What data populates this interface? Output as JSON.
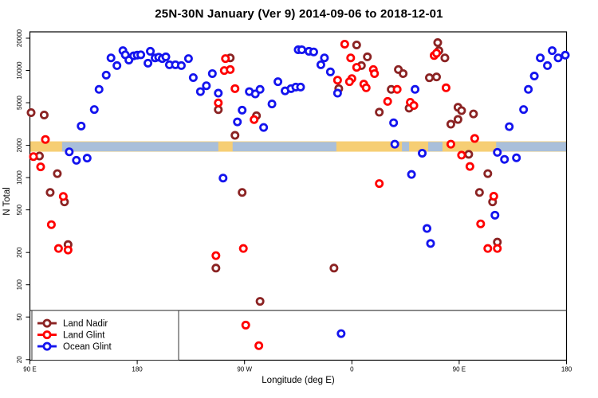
{
  "title": "25N-30N January (Ver 9)   2014-09-06 to 2018-12-01",
  "chart_data": {
    "type": "scatter",
    "title": "25N-30N January (Ver 9)   2014-09-06 to 2018-12-01",
    "xlabel": "Longitude (deg E)",
    "ylabel": "N Total",
    "x_range_deg": [
      90,
      540
    ],
    "y_log_range": [
      20,
      20000
    ],
    "x_ticks": [
      {
        "lon": 90,
        "label": "90 E"
      },
      {
        "lon": 180,
        "label": "180"
      },
      {
        "lon": 270,
        "label": "90 W"
      },
      {
        "lon": 360,
        "label": "0"
      },
      {
        "lon": 450,
        "label": "90 E"
      },
      {
        "lon": 540,
        "label": "180"
      }
    ],
    "y_ticks": [
      20000,
      10000,
      5000,
      2000,
      1000,
      500,
      200,
      100,
      50,
      20
    ],
    "grid": false,
    "hline_n": 57.5,
    "band": {
      "n_top": 2180,
      "n_bottom": 1745,
      "base_color": "#F6CE74",
      "overlay_color": "#A9BFDA",
      "overlay_segments_lon": [
        [
          117,
          248
        ],
        [
          260,
          347
        ],
        [
          402,
          408
        ],
        [
          424,
          436
        ],
        [
          481,
          540
        ]
      ]
    },
    "legend": {
      "position": "bottom-left"
    },
    "marker": {
      "radius": 4.1,
      "stroke_width": 2.8
    },
    "series": [
      {
        "name": "Land Nadir",
        "color": "#8B2323",
        "points": [
          [
            91,
            4040
          ],
          [
            102,
            3840
          ],
          [
            98,
            1590
          ],
          [
            113,
            1090
          ],
          [
            107,
            727
          ],
          [
            119,
            593
          ],
          [
            122,
            237
          ],
          [
            258,
            13100
          ],
          [
            248,
            4310
          ],
          [
            280,
            3780
          ],
          [
            262,
            2480
          ],
          [
            268,
            727
          ],
          [
            246,
            143
          ],
          [
            283,
            70
          ],
          [
            364,
            17300
          ],
          [
            373,
            13400
          ],
          [
            368,
            11100
          ],
          [
            399,
            10200
          ],
          [
            403,
            9350
          ],
          [
            349,
            6770
          ],
          [
            393,
            6660
          ],
          [
            383,
            4080
          ],
          [
            408,
            4450
          ],
          [
            425,
            8550
          ],
          [
            345,
            143
          ],
          [
            432,
            18200
          ],
          [
            433,
            15300
          ],
          [
            438,
            13100
          ],
          [
            431,
            8700
          ],
          [
            449,
            4530
          ],
          [
            452,
            4220
          ],
          [
            462,
            3930
          ],
          [
            449,
            3490
          ],
          [
            443,
            3150
          ],
          [
            458,
            1650
          ],
          [
            474,
            1090
          ],
          [
            467,
            727
          ],
          [
            478,
            593
          ],
          [
            482,
            250
          ]
        ]
      },
      {
        "name": "Land Glint",
        "color": "#FF0000",
        "points": [
          [
            103,
            2270
          ],
          [
            93,
            1570
          ],
          [
            99,
            1260
          ],
          [
            118,
            667
          ],
          [
            108,
            364
          ],
          [
            114,
            218
          ],
          [
            122,
            211
          ],
          [
            254,
            12900
          ],
          [
            253,
            9980
          ],
          [
            258,
            10200
          ],
          [
            262,
            6770
          ],
          [
            248,
            4980
          ],
          [
            278,
            3480
          ],
          [
            269,
            218
          ],
          [
            246,
            187
          ],
          [
            271,
            42
          ],
          [
            282,
            27
          ],
          [
            354,
            17600
          ],
          [
            359,
            13100
          ],
          [
            364,
            10700
          ],
          [
            378,
            10200
          ],
          [
            379,
            9350
          ],
          [
            360,
            8400
          ],
          [
            348,
            8120
          ],
          [
            358,
            7850
          ],
          [
            370,
            7460
          ],
          [
            372,
            6890
          ],
          [
            390,
            5140
          ],
          [
            398,
            6660
          ],
          [
            409,
            5050
          ],
          [
            412,
            4710
          ],
          [
            429,
            13800
          ],
          [
            383,
            880
          ],
          [
            431,
            14500
          ],
          [
            439,
            6890
          ],
          [
            463,
            2320
          ],
          [
            443,
            2050
          ],
          [
            452,
            1620
          ],
          [
            459,
            1270
          ],
          [
            479,
            670
          ],
          [
            468,
            370
          ],
          [
            474,
            218
          ],
          [
            482,
            218
          ]
        ]
      },
      {
        "name": "Ocean Glint",
        "color": "#1414EE",
        "points": [
          [
            133,
            3030
          ],
          [
            144,
            4320
          ],
          [
            148,
            6660
          ],
          [
            154,
            9050
          ],
          [
            158,
            13100
          ],
          [
            163,
            11100
          ],
          [
            168,
            15300
          ],
          [
            170,
            14000
          ],
          [
            173,
            12500
          ],
          [
            177,
            13700
          ],
          [
            180,
            13900
          ],
          [
            183,
            14000
          ],
          [
            189,
            11700
          ],
          [
            191,
            15100
          ],
          [
            195,
            13100
          ],
          [
            198,
            13300
          ],
          [
            201,
            12900
          ],
          [
            204,
            13400
          ],
          [
            207,
            11300
          ],
          [
            212,
            11300
          ],
          [
            217,
            11100
          ],
          [
            223,
            12900
          ],
          [
            227,
            8580
          ],
          [
            243,
            9350
          ],
          [
            238,
            7200
          ],
          [
            233,
            6350
          ],
          [
            248,
            6140
          ],
          [
            274,
            6350
          ],
          [
            279,
            6040
          ],
          [
            283,
            6660
          ],
          [
            298,
            7850
          ],
          [
            304,
            6450
          ],
          [
            309,
            6770
          ],
          [
            313,
            7000
          ],
          [
            315,
            15600
          ],
          [
            293,
            4870
          ],
          [
            268,
            4260
          ],
          [
            264,
            3310
          ],
          [
            286,
            2940
          ],
          [
            318,
            15600
          ],
          [
            324,
            15100
          ],
          [
            328,
            14900
          ],
          [
            337,
            13100
          ],
          [
            334,
            11300
          ],
          [
            342,
            9700
          ],
          [
            348,
            6140
          ],
          [
            317,
            7000
          ],
          [
            413,
            6660
          ],
          [
            395,
            3250
          ],
          [
            396,
            2050
          ],
          [
            528,
            15300
          ],
          [
            533,
            13100
          ],
          [
            539,
            13900
          ],
          [
            518,
            13100
          ],
          [
            524,
            11100
          ],
          [
            513,
            8870
          ],
          [
            508,
            6660
          ],
          [
            504,
            4320
          ],
          [
            492,
            2990
          ],
          [
            123,
            1740
          ],
          [
            129,
            1450
          ],
          [
            138,
            1520
          ],
          [
            252,
            990
          ],
          [
            419,
            1690
          ],
          [
            410,
            1070
          ],
          [
            423,
            335
          ],
          [
            426,
            243
          ],
          [
            351,
            35
          ],
          [
            482,
            1720
          ],
          [
            488,
            1480
          ],
          [
            498,
            1530
          ],
          [
            480,
            446
          ]
        ]
      }
    ]
  }
}
